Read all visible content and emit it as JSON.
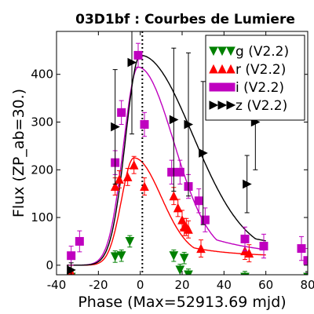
{
  "chart_data": {
    "type": "scatter",
    "title": "03D1bf : Courbes de Lumiere",
    "xlabel": "Phase (Max=52913.69 mjd)",
    "ylabel": "Flux (ZP_ab=30.)",
    "xlim": [
      -40,
      80
    ],
    "ylim": [
      -20,
      490
    ],
    "xticks": [
      "-40",
      "-20",
      "0",
      "20",
      "40",
      "60",
      "80"
    ],
    "yticks": [
      "0",
      "100",
      "200",
      "300",
      "400"
    ],
    "max_phase_marker": 1,
    "legend_location": "upper-right",
    "series": [
      {
        "name": "g (V2.2)",
        "color": "#008000",
        "marker": "triangle-down",
        "points": [
          {
            "x": -33,
            "y": -25,
            "err": 12
          },
          {
            "x": -12,
            "y": 18,
            "err": 12
          },
          {
            "x": -9,
            "y": 20,
            "err": 12
          },
          {
            "x": -5,
            "y": 50,
            "err": 12
          },
          {
            "x": 16,
            "y": 20,
            "err": 12
          },
          {
            "x": 19,
            "y": -10,
            "err": 12
          },
          {
            "x": 21,
            "y": 15,
            "err": 12
          },
          {
            "x": 23,
            "y": -20,
            "err": 12
          },
          {
            "x": 50,
            "y": -25,
            "err": 12
          },
          {
            "x": 80,
            "y": -25,
            "err": 12
          }
        ],
        "fit": null
      },
      {
        "name": "r (V2.2)",
        "color": "#ff0000",
        "marker": "triangle-up",
        "points": [
          {
            "x": -33,
            "y": -15,
            "err": 15
          },
          {
            "x": -12,
            "y": 165,
            "err": 18
          },
          {
            "x": -10,
            "y": 180,
            "err": 18
          },
          {
            "x": -6,
            "y": 185,
            "err": 18
          },
          {
            "x": -3,
            "y": 210,
            "err": 18
          },
          {
            "x": 2,
            "y": 165,
            "err": 18
          },
          {
            "x": 16,
            "y": 145,
            "err": 18
          },
          {
            "x": 18,
            "y": 120,
            "err": 18
          },
          {
            "x": 20,
            "y": 95,
            "err": 20
          },
          {
            "x": 21,
            "y": 80,
            "err": 18
          },
          {
            "x": 22,
            "y": 80,
            "err": 18
          },
          {
            "x": 23,
            "y": 75,
            "err": 18
          },
          {
            "x": 29,
            "y": 35,
            "err": 18
          },
          {
            "x": 50,
            "y": 30,
            "err": 18
          },
          {
            "x": 52,
            "y": 25,
            "err": 18
          }
        ],
        "fit": {
          "peak": 225,
          "t0": -3,
          "rise": 6,
          "fall": 13,
          "base": 18,
          "start": -35,
          "end": 60
        }
      },
      {
        "name": "i (V2.2)",
        "color": "#bf00bf",
        "marker": "square",
        "points": [
          {
            "x": -33,
            "y": 20,
            "err": 20
          },
          {
            "x": -29,
            "y": 50,
            "err": 22
          },
          {
            "x": -12,
            "y": 215,
            "err": 25
          },
          {
            "x": -9,
            "y": 320,
            "err": 25
          },
          {
            "x": -1,
            "y": 440,
            "err": 25
          },
          {
            "x": 2,
            "y": 295,
            "err": 25
          },
          {
            "x": 15,
            "y": 195,
            "err": 25
          },
          {
            "x": 19,
            "y": 195,
            "err": 25
          },
          {
            "x": 23,
            "y": 165,
            "err": 25
          },
          {
            "x": 28,
            "y": 135,
            "err": 25
          },
          {
            "x": 31,
            "y": 95,
            "err": 25
          },
          {
            "x": 50,
            "y": 55,
            "err": 25
          },
          {
            "x": 59,
            "y": 40,
            "err": 25
          },
          {
            "x": 77,
            "y": 35,
            "err": 25
          },
          {
            "x": 80,
            "y": 10,
            "err": 25
          }
        ],
        "fit": {
          "peak": 415,
          "t0": -1,
          "rise": 7,
          "fall": 17,
          "base": 18,
          "start": -35,
          "end": 60
        }
      },
      {
        "name": "z (V2.2)",
        "color": "#000000",
        "marker": "triangle-right",
        "points": [
          {
            "x": -33,
            "y": -10,
            "err": 15
          },
          {
            "x": -12,
            "y": 290,
            "err": 120
          },
          {
            "x": -4,
            "y": 425,
            "err": 150
          },
          {
            "x": 16,
            "y": 305,
            "err": 150
          },
          {
            "x": 23,
            "y": 295,
            "err": 150
          },
          {
            "x": 30,
            "y": 235,
            "err": 150
          },
          {
            "x": 51,
            "y": 170,
            "err": 60
          },
          {
            "x": 55,
            "y": 300,
            "err": 100
          }
        ],
        "fit": {
          "peak": 440,
          "t0": 0,
          "rise": 7,
          "fall": 25,
          "base": 18,
          "start": -35,
          "end": 60
        }
      }
    ]
  }
}
